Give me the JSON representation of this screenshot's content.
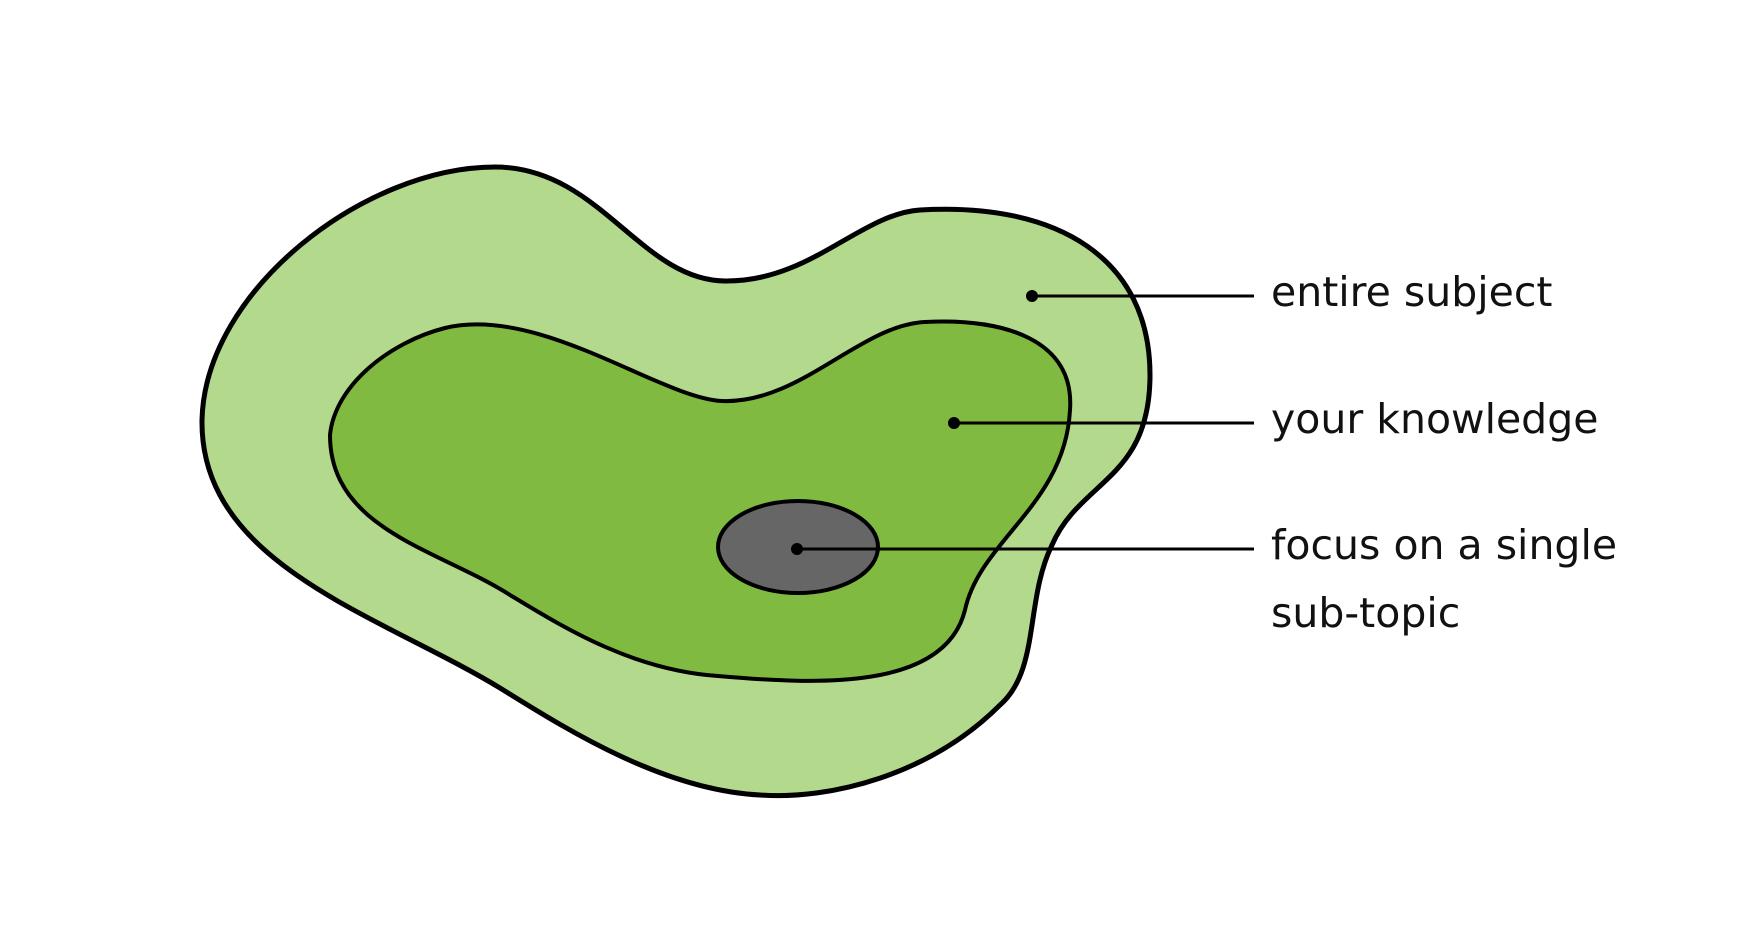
{
  "colors": {
    "outer_region": "#b3d98c",
    "inner_region": "#80ba41",
    "focus_region": "#666666",
    "outline": "#000000",
    "background": "#ffffff"
  },
  "regions": [
    {
      "id": "entire-subject",
      "label": "entire subject"
    },
    {
      "id": "your-knowledge",
      "label": "your knowledge"
    },
    {
      "id": "focus",
      "label_lines": [
        "focus on a single",
        "sub-topic"
      ]
    }
  ]
}
